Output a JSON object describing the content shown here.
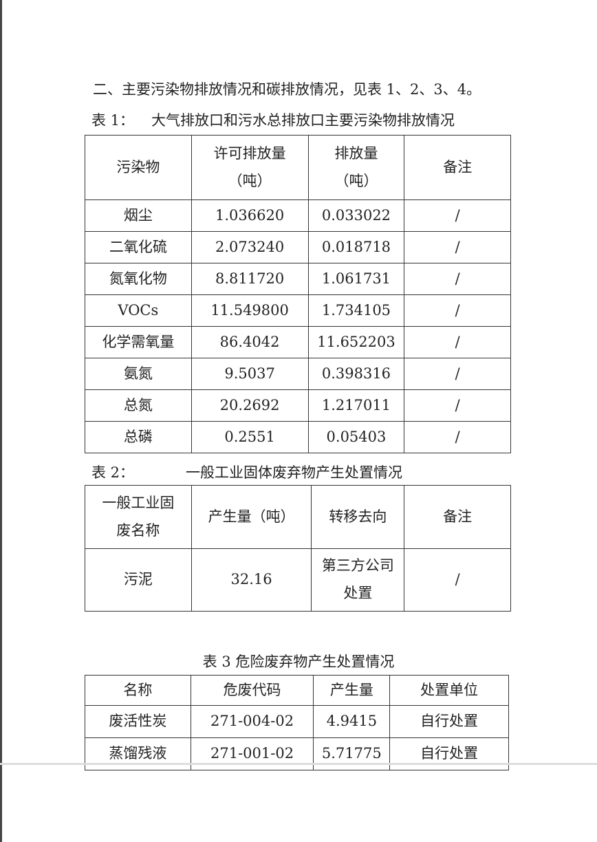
{
  "intro": "二、主要污染物排放情况和碳排放情况，见表 1、2、3、4。",
  "table1": {
    "label": "表 1：",
    "title": "大气排放口和污水总排放口主要污染物排放情况",
    "headers": [
      "污染物",
      "许可排放量\n（吨）",
      "排放量\n（吨）",
      "备注"
    ],
    "rows": [
      [
        "烟尘",
        "1.036620",
        "0.033022",
        "/"
      ],
      [
        "二氧化硫",
        "2.073240",
        "0.018718",
        "/"
      ],
      [
        "氮氧化物",
        "8.811720",
        "1.061731",
        "/"
      ],
      [
        "VOCs",
        "11.549800",
        "1.734105",
        "/"
      ],
      [
        "化学需氧量",
        "86.4042",
        "11.652203",
        "/"
      ],
      [
        "氨氮",
        "9.5037",
        "0.398316",
        "/"
      ],
      [
        "总氮",
        "20.2692",
        "1.217011",
        "/"
      ],
      [
        "总磷",
        "0.2551",
        "0.05403",
        "/"
      ]
    ]
  },
  "table2": {
    "label": "表 2：",
    "title": "一般工业固体废弃物产生处置情况",
    "headers": [
      "一般工业固\n废名称",
      "产生量（吨）",
      "转移去向",
      "备注"
    ],
    "rows": [
      [
        "污泥",
        "32.16",
        "第三方公司\n处置",
        "/"
      ]
    ]
  },
  "table3": {
    "title": "表 3 危险废弃物产生处置情况",
    "headers": [
      "名称",
      "危废代码",
      "产生量",
      "处置单位"
    ],
    "rows": [
      [
        "废活性炭",
        "271-004-02",
        "4.9415",
        "自行处置"
      ],
      [
        "蒸馏残液",
        "271-001-02",
        "5.71775",
        "自行处置"
      ]
    ]
  }
}
